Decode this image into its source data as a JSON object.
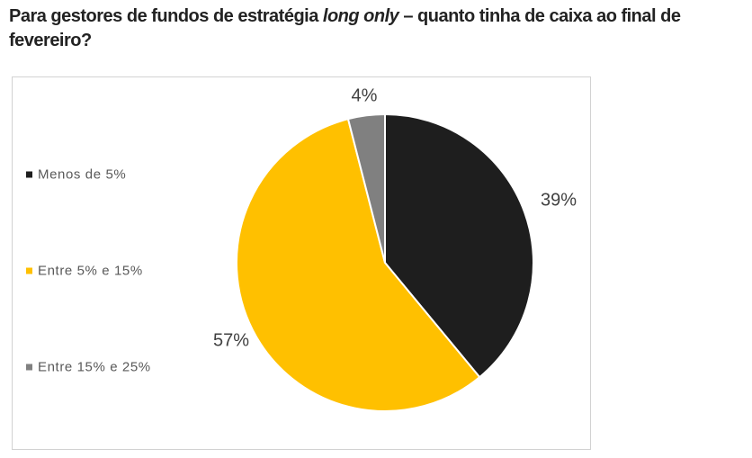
{
  "title": {
    "line1_prefix": "Para gestores de fundos de estratégia ",
    "line1_italic": "long only",
    "line1_suffix": " – quanto tinha de caixa ao final de",
    "line2": "fevereiro?"
  },
  "chart_data": {
    "type": "pie",
    "title": "Para gestores de fundos de estratégia long only – quanto tinha de caixa ao final de fevereiro?",
    "unit": "%",
    "start_angle_deg": 0,
    "direction": "clockwise",
    "legend_position": "left",
    "data_labels_position": "outside-end",
    "slices": [
      {
        "label": "Menos de 5%",
        "value": 39,
        "display": "39%",
        "color": "#1e1e1e"
      },
      {
        "label": "Entre 5% e 15%",
        "value": 57,
        "display": "57%",
        "color": "#ffc000"
      },
      {
        "label": "Entre 15% e 25%",
        "value": 4,
        "display": "4%",
        "color": "#808080"
      }
    ]
  },
  "colors": {
    "label_text": "#404040",
    "legend_text": "#595959",
    "frame_border": "#d2d2d2",
    "slice_separator": "#ffffff"
  }
}
